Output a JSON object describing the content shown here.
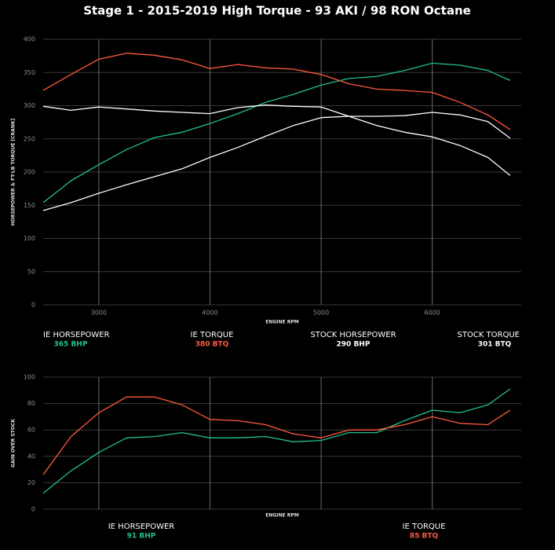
{
  "chart_data": [
    {
      "type": "line",
      "title": "Stage 1 - 2015-2019 High Torque - 93 AKI / 98 RON Octane",
      "x_label": "ENGINE RPM",
      "y_label": "HORSEPOWER & FT-LB TORQUE [CRANK]",
      "xlim": [
        2500,
        6800
      ],
      "xticks": [
        3000,
        4000,
        5000,
        6000
      ],
      "ylim": [
        0,
        400
      ],
      "yticks": [
        0,
        50,
        100,
        150,
        200,
        250,
        300,
        350,
        400
      ],
      "grid": true,
      "x": [
        2500,
        2750,
        3000,
        3250,
        3500,
        3750,
        4000,
        4250,
        4500,
        4750,
        5000,
        5250,
        5500,
        5750,
        6000,
        6250,
        6500,
        6700
      ],
      "series": [
        {
          "name": "IE HORSEPOWER",
          "peak_label": "365 BHP",
          "color": "#22c08e",
          "values": [
            154,
            187,
            211,
            234,
            252,
            260,
            273,
            288,
            305,
            317,
            331,
            341,
            344,
            353,
            364,
            361,
            353,
            338
          ]
        },
        {
          "name": "IE TORQUE",
          "peak_label": "380 BTQ",
          "color": "#ff5a3c",
          "values": [
            323,
            347,
            370,
            379,
            376,
            369,
            356,
            362,
            357,
            355,
            347,
            333,
            325,
            323,
            320,
            305,
            286,
            264
          ]
        },
        {
          "name": "STOCK HORSEPOWER",
          "peak_label": "290 BHP",
          "color": "#ffffff",
          "values": [
            142,
            154,
            168,
            181,
            193,
            205,
            222,
            237,
            254,
            270,
            282,
            284,
            284,
            285,
            290,
            286,
            276,
            251
          ]
        },
        {
          "name": "STOCK TORQUE",
          "peak_label": "301 BTQ",
          "color": "#ffffff",
          "values": [
            299,
            293,
            298,
            295,
            292,
            290,
            288,
            297,
            301,
            299,
            298,
            284,
            270,
            260,
            253,
            240,
            222,
            195
          ]
        }
      ]
    },
    {
      "type": "line",
      "x_label": "ENGINE RPM",
      "y_label": "GAIN OVER STOCK",
      "xlim": [
        2500,
        6800
      ],
      "xgrid": [
        3000,
        4000,
        5000,
        6000
      ],
      "ylim": [
        0,
        100
      ],
      "yticks": [
        0,
        20,
        40,
        60,
        80,
        100
      ],
      "grid": true,
      "x": [
        2500,
        2750,
        3000,
        3250,
        3500,
        3750,
        4000,
        4250,
        4500,
        4750,
        5000,
        5250,
        5500,
        5750,
        6000,
        6250,
        6500,
        6700
      ],
      "series": [
        {
          "name": "IE HORSEPOWER",
          "peak_label": "91 BHP",
          "color": "#22c08e",
          "values": [
            12,
            29,
            43,
            54,
            55,
            58,
            54,
            54,
            55,
            51,
            52,
            58,
            58,
            67,
            75,
            73,
            79,
            91
          ]
        },
        {
          "name": "IE TORQUE",
          "peak_label": "85 BTQ",
          "color": "#ff5a3c",
          "values": [
            26,
            55,
            73,
            85,
            85,
            79,
            68,
            67,
            64,
            57,
            54,
            60,
            60,
            64,
            70,
            65,
            64,
            75
          ]
        }
      ]
    }
  ]
}
